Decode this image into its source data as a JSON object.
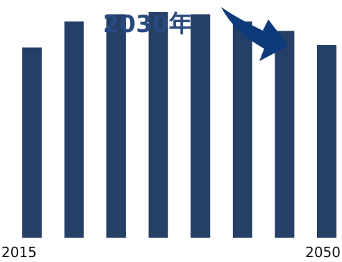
{
  "chart_data": {
    "type": "bar",
    "categories": [
      "2015",
      "",
      "",
      "",
      "",
      "",
      "",
      "2050"
    ],
    "values": [
      80,
      91,
      94,
      95,
      94,
      91,
      87,
      81
    ],
    "ylim": [
      0,
      100
    ],
    "tick_labels": [
      "2015",
      "2050"
    ],
    "annotation": "2030年",
    "colors": {
      "bar": "#263f67",
      "annotation": "#2a4a7f",
      "arrow": "#0d3a7a"
    }
  }
}
